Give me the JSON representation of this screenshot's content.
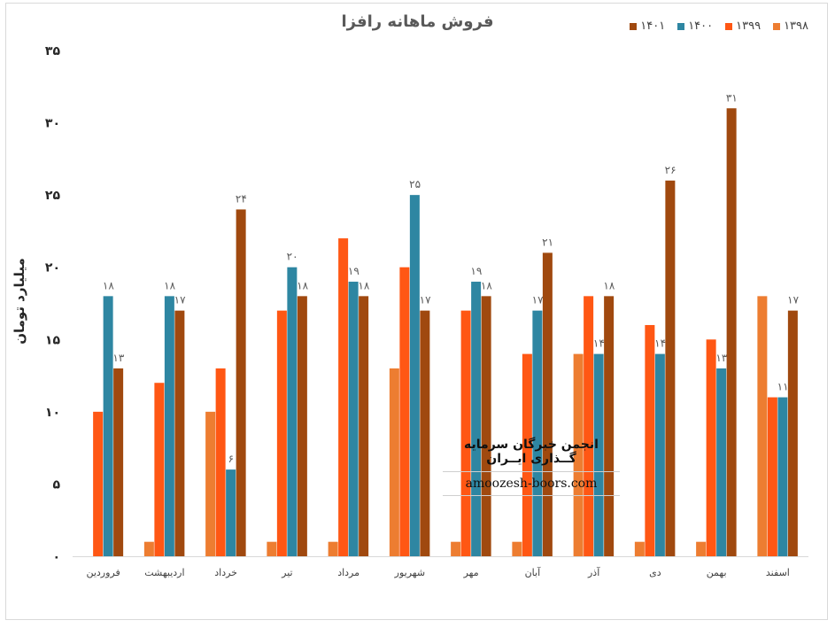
{
  "chart_data": {
    "type": "bar",
    "title": "فروش ماهانه رافزا",
    "ylabel": "میلیارد تومان",
    "xlabel": "",
    "ylim": [
      0,
      35
    ],
    "yticks": [
      "۰",
      "۵",
      "۱۰",
      "۱۵",
      "۲۰",
      "۲۵",
      "۳۰",
      "۳۵"
    ],
    "categories": [
      "فروردین",
      "اردیبهشت",
      "خرداد",
      "تیر",
      "مرداد",
      "شهریور",
      "مهر",
      "آبان",
      "آذر",
      "دی",
      "بهمن",
      "اسفند"
    ],
    "series": [
      {
        "name": "۱۳۹۸",
        "color": "#ED7D31",
        "values": [
          0,
          1,
          10,
          1,
          1,
          13,
          1,
          1,
          14,
          1,
          1,
          18
        ],
        "labels": [
          "",
          "",
          "",
          "",
          "",
          "",
          "",
          "",
          "",
          "",
          "",
          ""
        ]
      },
      {
        "name": "۱۳۹۹",
        "color": "#FF5714",
        "values": [
          10,
          12,
          13,
          17,
          22,
          20,
          17,
          14,
          18,
          16,
          15,
          11
        ],
        "labels": [
          "",
          "",
          "",
          "",
          "",
          "",
          "",
          "",
          "",
          "",
          "",
          ""
        ]
      },
      {
        "name": "۱۴۰۰",
        "color": "#2E86A2",
        "values": [
          18,
          18,
          6,
          20,
          19,
          25,
          19,
          17,
          14,
          14,
          13,
          11
        ],
        "labels": [
          "۱۸",
          "۱۸",
          "۶",
          "۲۰",
          "۱۹",
          "۲۵",
          "۱۹",
          "۱۷",
          "۱۴",
          "۱۴",
          "۱۳",
          "۱۱"
        ]
      },
      {
        "name": "۱۴۰۱",
        "color": "#A0490F",
        "values": [
          13,
          17,
          24,
          18,
          18,
          17,
          18,
          21,
          18,
          26,
          31,
          17
        ],
        "labels": [
          "۱۳",
          "۱۷",
          "۲۴",
          "۱۸",
          "۱۸",
          "۱۷",
          "۱۸",
          "۲۱",
          "۱۸",
          "۲۶",
          "۳۱",
          "۱۷"
        ]
      }
    ],
    "grid": false,
    "legend_position": "top-right"
  },
  "watermark": {
    "name": "انجمن خبرگان سرمایه گــذاری ایــران",
    "site": "amoozesh-boors.com"
  }
}
